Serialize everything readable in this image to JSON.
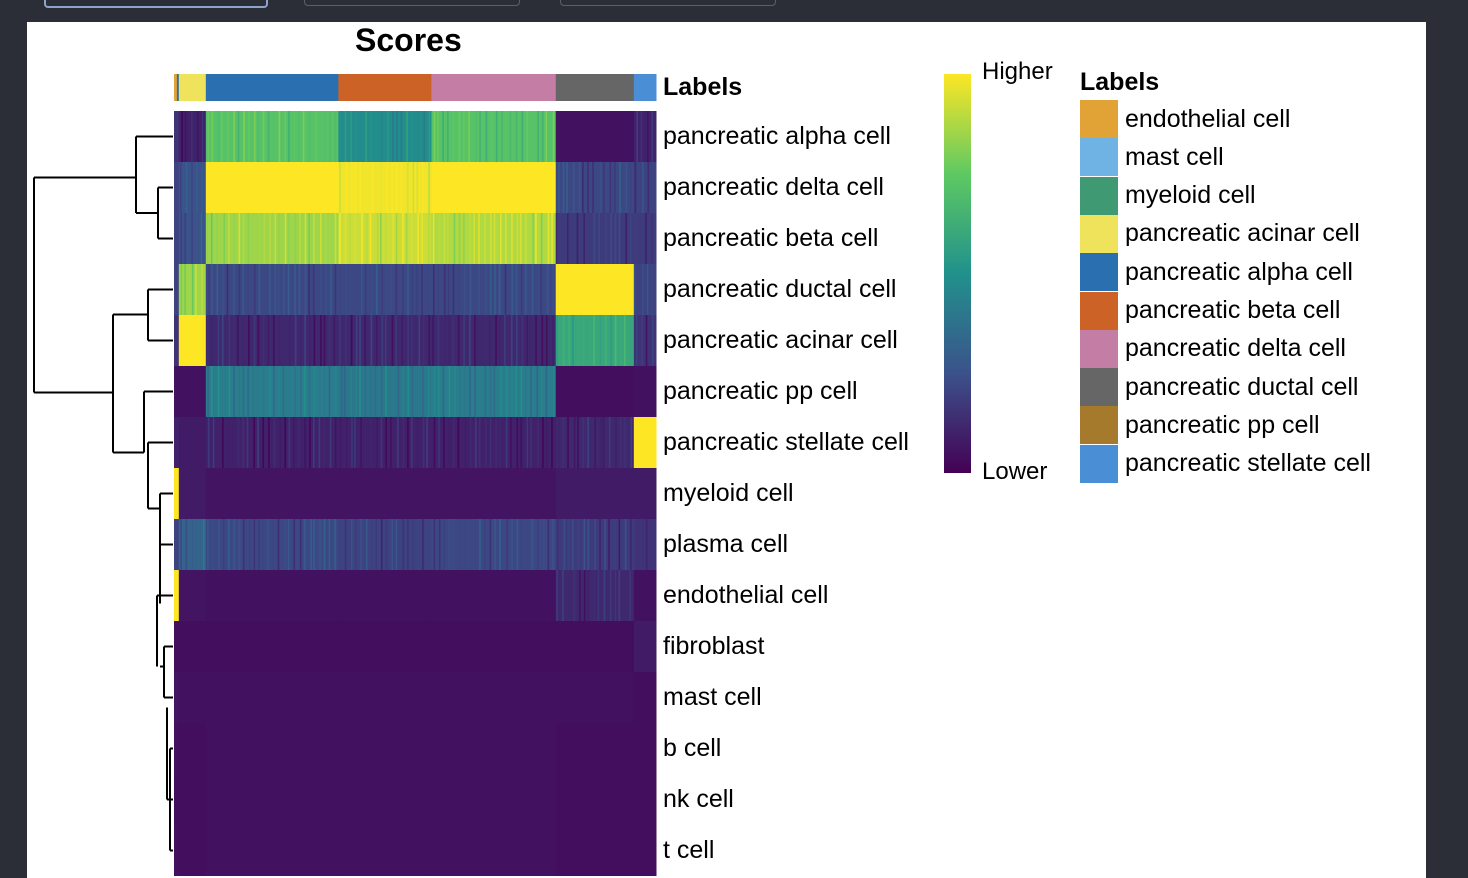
{
  "window": {
    "tabs": [
      "",
      "",
      ""
    ]
  },
  "chart_data": {
    "type": "heatmap",
    "title": "Scores",
    "annotation_label": "Labels",
    "rows": [
      "pancreatic alpha cell",
      "pancreatic delta cell",
      "pancreatic beta cell",
      "pancreatic ductal cell",
      "pancreatic acinar cell",
      "pancreatic pp cell",
      "pancreatic stellate cell",
      "myeloid cell",
      "plasma cell",
      "endothelial cell",
      "fibroblast",
      "mast cell",
      "b cell",
      "nk cell",
      "t cell"
    ],
    "column_groups": [
      {
        "label": "endothelial cell",
        "fraction": 0.006
      },
      {
        "label": "pancreatic alpha cell",
        "fraction": 0.004
      },
      {
        "label": "pancreatic acinar cell",
        "fraction": 0.056
      },
      {
        "label": "pancreatic alpha cell",
        "fraction": 0.275
      },
      {
        "label": "pancreatic beta cell",
        "fraction": 0.193
      },
      {
        "label": "pancreatic delta cell",
        "fraction": 0.258
      },
      {
        "label": "pancreatic ductal cell",
        "fraction": 0.162
      },
      {
        "label": "pancreatic stellate cell",
        "fraction": 0.046
      }
    ],
    "scores": [
      [
        0.15,
        0.15,
        0.1,
        0.72,
        0.48,
        0.72,
        0.05,
        0.1
      ],
      [
        0.2,
        0.2,
        0.25,
        1.0,
        0.98,
        1.0,
        0.22,
        0.2
      ],
      [
        0.2,
        0.2,
        0.25,
        0.85,
        0.92,
        0.88,
        0.18,
        0.18
      ],
      [
        0.2,
        0.2,
        0.85,
        0.22,
        0.22,
        0.22,
        1.0,
        0.2
      ],
      [
        0.15,
        0.15,
        1.0,
        0.12,
        0.12,
        0.12,
        0.6,
        0.15
      ],
      [
        0.05,
        0.05,
        0.05,
        0.42,
        0.4,
        0.42,
        0.04,
        0.05
      ],
      [
        0.1,
        0.1,
        0.08,
        0.1,
        0.1,
        0.1,
        0.12,
        1.0
      ],
      [
        1.0,
        1.0,
        0.08,
        0.06,
        0.06,
        0.06,
        0.08,
        0.08
      ],
      [
        0.2,
        0.2,
        0.32,
        0.22,
        0.2,
        0.22,
        0.18,
        0.15
      ],
      [
        1.0,
        1.0,
        0.06,
        0.05,
        0.05,
        0.05,
        0.12,
        0.05
      ],
      [
        0.04,
        0.04,
        0.04,
        0.04,
        0.04,
        0.04,
        0.04,
        0.08
      ],
      [
        0.06,
        0.06,
        0.05,
        0.05,
        0.05,
        0.05,
        0.05,
        0.04
      ],
      [
        0.05,
        0.05,
        0.04,
        0.05,
        0.05,
        0.05,
        0.04,
        0.04
      ],
      [
        0.04,
        0.04,
        0.04,
        0.05,
        0.05,
        0.05,
        0.04,
        0.04
      ],
      [
        0.05,
        0.05,
        0.04,
        0.05,
        0.05,
        0.05,
        0.04,
        0.04
      ]
    ],
    "dendrogram_order": [
      0,
      1,
      2,
      3,
      4,
      5,
      6,
      7,
      8,
      9,
      10,
      11,
      12,
      13,
      14
    ],
    "colorbar": {
      "high": "Higher",
      "low": "Lower",
      "colormap": "viridis"
    },
    "legend": {
      "title": "Labels",
      "position": "right",
      "items": [
        {
          "label": "endothelial cell",
          "color": "#e1a236"
        },
        {
          "label": "mast cell",
          "color": "#6fb3e4"
        },
        {
          "label": "myeloid cell",
          "color": "#3f9a74"
        },
        {
          "label": "pancreatic acinar cell",
          "color": "#f0e35c"
        },
        {
          "label": "pancreatic alpha cell",
          "color": "#2a70b0"
        },
        {
          "label": "pancreatic beta cell",
          "color": "#cc6226"
        },
        {
          "label": "pancreatic delta cell",
          "color": "#c47ea6"
        },
        {
          "label": "pancreatic ductal cell",
          "color": "#666666"
        },
        {
          "label": "pancreatic pp cell",
          "color": "#a57a2c"
        },
        {
          "label": "pancreatic stellate cell",
          "color": "#4a8fd6"
        }
      ]
    }
  }
}
